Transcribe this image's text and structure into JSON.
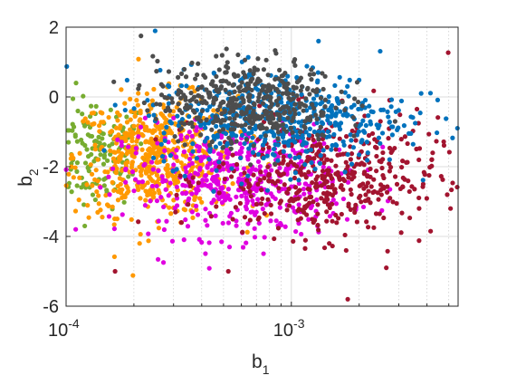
{
  "chart_data": {
    "type": "scatter",
    "title": "",
    "xlabel_main": "b",
    "xlabel_sub": "1",
    "ylabel_main": "b",
    "ylabel_sub": "2",
    "x_scale": "log",
    "xlim": [
      0.0001,
      0.0055
    ],
    "ylim": [
      -6,
      2
    ],
    "grid": true,
    "legend": "none",
    "x_ticks": [
      {
        "value": 0.0001,
        "base": "10",
        "exp": "-4"
      },
      {
        "value": 0.001,
        "base": "10",
        "exp": "-3"
      }
    ],
    "y_ticks": [
      {
        "value": -6,
        "label": "-6"
      },
      {
        "value": -4,
        "label": "-4"
      },
      {
        "value": -2,
        "label": "-2"
      },
      {
        "value": 0,
        "label": "0"
      },
      {
        "value": 2,
        "label": "2"
      }
    ],
    "series": [
      {
        "color": "#77ac30",
        "log10_center": -3.88,
        "log10_spread": 0.12,
        "y_center": -1.6,
        "y_spread": 0.8,
        "count": 170
      },
      {
        "color": "#ff9900",
        "log10_center": -3.6,
        "log10_spread": 0.18,
        "y_center": -1.7,
        "y_spread": 0.85,
        "count": 560
      },
      {
        "color": "#e000e0",
        "log10_center": -3.25,
        "log10_spread": 0.25,
        "y_center": -2.4,
        "y_spread": 0.8,
        "count": 480
      },
      {
        "color": "#a2142f",
        "log10_center": -2.85,
        "log10_spread": 0.25,
        "y_center": -2.3,
        "y_spread": 0.85,
        "count": 460
      },
      {
        "color": "#0072bd",
        "log10_center": -3.05,
        "log10_spread": 0.28,
        "y_center": -0.6,
        "y_spread": 0.7,
        "count": 520
      },
      {
        "color": "#4d4d4d",
        "log10_center": -3.2,
        "log10_spread": 0.2,
        "y_center": -0.1,
        "y_spread": 0.6,
        "count": 440
      }
    ],
    "outliers": [
      {
        "x": 0.000215,
        "y": 1.75,
        "color": "#4d4d4d"
      },
      {
        "x": 0.00497,
        "y": 1.27,
        "color": "#a2142f"
      },
      {
        "x": 0.000165,
        "y": -5.0,
        "color": "#a2142f"
      },
      {
        "x": 0.00178,
        "y": -5.8,
        "color": "#a2142f"
      },
      {
        "x": 0.00264,
        "y": -4.9,
        "color": "#a2142f"
      },
      {
        "x": 0.000525,
        "y": -5.0,
        "color": "#a2142f"
      },
      {
        "x": 0.000212,
        "y": -4.2,
        "color": "#ff9900"
      },
      {
        "x": 0.00509,
        "y": -3.2,
        "color": "#a2142f"
      },
      {
        "x": 0.00377,
        "y": 0.1,
        "color": "#0072bd"
      },
      {
        "x": 0.00132,
        "y": 1.6,
        "color": "#0072bd"
      }
    ]
  }
}
